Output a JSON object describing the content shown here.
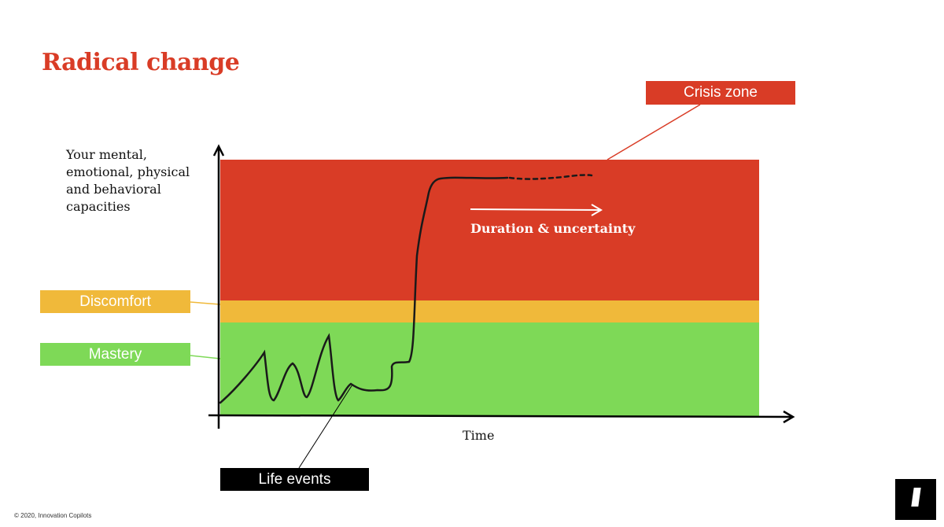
{
  "slide": {
    "title": "Radical change",
    "y_axis_label": "Your mental, emotional, physical and behavioral capacities",
    "x_axis_label": "Time",
    "copyright": "© 2020, Innovation Copilots"
  },
  "zones": {
    "crisis": "Crisis zone",
    "discomfort": "Discomfort",
    "mastery": "Mastery"
  },
  "annotations": {
    "life_events": "Life events",
    "duration": "Duration & uncertainty"
  },
  "colors": {
    "crisis": "#d93c26",
    "discomfort": "#f0b93a",
    "mastery": "#7ed957",
    "title": "#d93c26",
    "mastery_tag": "#7ed957",
    "discomfort_tag": "#f0b93a",
    "crisis_tag": "#d93c26"
  },
  "logo": {
    "icon": "innovation-copilots-logo"
  }
}
